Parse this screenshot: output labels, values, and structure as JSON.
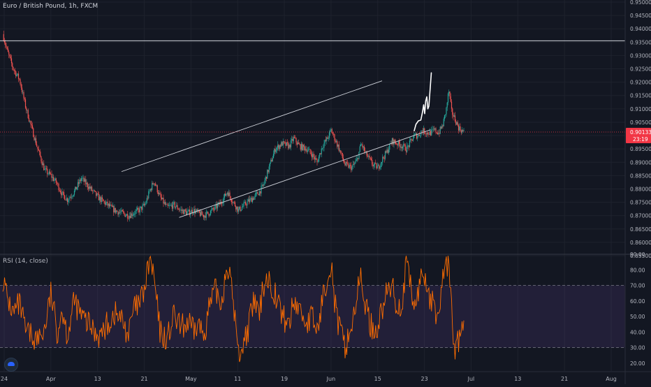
{
  "header": {
    "title": "Euro / British Pound, 1h, FXCM"
  },
  "colors": {
    "background": "#131722",
    "up": "#26a69a",
    "down": "#ef5350",
    "price_line": "#f23645",
    "rsi": "#ff6d00",
    "rsi_band": "#7e57c2",
    "drawing": "#ffffff"
  },
  "price_scale": {
    "ticks": [
      "0.95000",
      "0.94500",
      "0.94000",
      "0.93500",
      "0.93000",
      "0.92500",
      "0.92000",
      "0.91500",
      "0.91000",
      "0.90500",
      "0.90000",
      "0.89500",
      "0.89000",
      "0.88500",
      "0.88000",
      "0.87500",
      "0.87000",
      "0.86500",
      "0.86000",
      "0.85500"
    ],
    "last_price": "0.90133",
    "countdown": "23:19"
  },
  "rsi": {
    "label": "RSI (14, close)",
    "ticks": [
      "90.00",
      "80.00",
      "70.00",
      "60.00",
      "50.00",
      "40.00",
      "30.00",
      "20.00"
    ]
  },
  "time_axis": {
    "labels": [
      "24",
      "Apr",
      "13",
      "21",
      "May",
      "11",
      "19",
      "Jun",
      "15",
      "23",
      "Jul",
      "13",
      "21",
      "Aug"
    ]
  },
  "chart_data": {
    "type": "candlestick",
    "symbol": "Euro / British Pound",
    "timeframe": "1h",
    "source": "FXCM",
    "ylim": [
      0.855,
      0.95
    ],
    "last_price": 0.90133,
    "price_path": [
      [
        0,
        0.938
      ],
      [
        1.2,
        0.932
      ],
      [
        3,
        0.925
      ],
      [
        4.8,
        0.921
      ],
      [
        6.5,
        0.911
      ],
      [
        8,
        0.904
      ],
      [
        10,
        0.895
      ],
      [
        12,
        0.887
      ],
      [
        13.8,
        0.885
      ],
      [
        15.5,
        0.882
      ],
      [
        17,
        0.878
      ],
      [
        18.5,
        0.876
      ],
      [
        20.5,
        0.879
      ],
      [
        22.5,
        0.884
      ],
      [
        24.5,
        0.881
      ],
      [
        26.5,
        0.878
      ],
      [
        28,
        0.876
      ],
      [
        30,
        0.874
      ],
      [
        32,
        0.872
      ],
      [
        34,
        0.871
      ],
      [
        36,
        0.87
      ],
      [
        37.5,
        0.871
      ],
      [
        39,
        0.872
      ],
      [
        40.7,
        0.874
      ],
      [
        42,
        0.879
      ],
      [
        43.3,
        0.883
      ],
      [
        45,
        0.877
      ],
      [
        47,
        0.873
      ],
      [
        49,
        0.874
      ],
      [
        51,
        0.872
      ],
      [
        53,
        0.871
      ],
      [
        54.5,
        0.872
      ],
      [
        56,
        0.871
      ],
      [
        57.5,
        0.87
      ],
      [
        59,
        0.871
      ],
      [
        61,
        0.873
      ],
      [
        62.5,
        0.875
      ],
      [
        64.3,
        0.879
      ],
      [
        66,
        0.875
      ],
      [
        67.5,
        0.872
      ],
      [
        70,
        0.875
      ],
      [
        72,
        0.877
      ],
      [
        73.5,
        0.879
      ],
      [
        74.5,
        0.881
      ],
      [
        75.5,
        0.885
      ],
      [
        76.5,
        0.889
      ],
      [
        78,
        0.895
      ],
      [
        80,
        0.897
      ],
      [
        82,
        0.896
      ],
      [
        83.3,
        0.899
      ],
      [
        85,
        0.896
      ],
      [
        87,
        0.895
      ],
      [
        88.5,
        0.893
      ],
      [
        90,
        0.89
      ],
      [
        91.5,
        0.896
      ],
      [
        93,
        0.899
      ],
      [
        94,
        0.902
      ],
      [
        95,
        0.899
      ],
      [
        96,
        0.896
      ],
      [
        98,
        0.889
      ],
      [
        100,
        0.888
      ],
      [
        101.5,
        0.891
      ],
      [
        102.6,
        0.897
      ],
      [
        104,
        0.893
      ],
      [
        106,
        0.889
      ],
      [
        107.5,
        0.888
      ],
      [
        108.6,
        0.891
      ],
      [
        110,
        0.894
      ],
      [
        111.5,
        0.898
      ],
      [
        113,
        0.897
      ],
      [
        114.5,
        0.896
      ],
      [
        115.6,
        0.895
      ],
      [
        116.5,
        0.897
      ],
      [
        117.8,
        0.9
      ],
      [
        119,
        0.9
      ],
      [
        120,
        0.902
      ],
      [
        121.5,
        0.901
      ],
      [
        122.5,
        0.901
      ],
      [
        123.6,
        0.902
      ],
      [
        124.8,
        0.901
      ],
      [
        126,
        0.904
      ],
      [
        127,
        0.91
      ],
      [
        127.7,
        0.917
      ],
      [
        128.5,
        0.909
      ],
      [
        129.5,
        0.906
      ],
      [
        130.5,
        0.903
      ],
      [
        131.3,
        0.902
      ],
      [
        132.2,
        0.901
      ]
    ],
    "rsi_ylim": [
      15,
      90
    ],
    "rsi_levels": [
      30,
      70
    ],
    "rsi_path": [
      [
        0,
        75
      ],
      [
        1.2,
        62
      ],
      [
        3,
        52
      ],
      [
        4.8,
        58
      ],
      [
        6.5,
        40
      ],
      [
        8,
        38
      ],
      [
        10,
        35
      ],
      [
        12,
        42
      ],
      [
        13.8,
        65
      ],
      [
        15.5,
        40
      ],
      [
        17,
        55
      ],
      [
        18.5,
        38
      ],
      [
        20.5,
        60
      ],
      [
        22.5,
        50
      ],
      [
        24.5,
        45
      ],
      [
        26.5,
        40
      ],
      [
        28,
        38
      ],
      [
        30,
        45
      ],
      [
        32,
        52
      ],
      [
        34,
        48
      ],
      [
        36,
        38
      ],
      [
        37.5,
        55
      ],
      [
        39,
        57
      ],
      [
        40.7,
        68
      ],
      [
        42,
        87
      ],
      [
        43.3,
        75
      ],
      [
        45,
        40
      ],
      [
        47,
        35
      ],
      [
        49,
        50
      ],
      [
        51,
        42
      ],
      [
        53,
        46
      ],
      [
        54.5,
        40
      ],
      [
        56,
        45
      ],
      [
        57.5,
        38
      ],
      [
        59,
        55
      ],
      [
        61,
        67
      ],
      [
        62.5,
        58
      ],
      [
        64.3,
        85
      ],
      [
        66,
        60
      ],
      [
        67.5,
        25
      ],
      [
        70,
        40
      ],
      [
        72,
        60
      ],
      [
        73.5,
        50
      ],
      [
        74.5,
        70
      ],
      [
        75.5,
        75
      ],
      [
        76.5,
        72
      ],
      [
        78,
        65
      ],
      [
        80,
        50
      ],
      [
        82,
        45
      ],
      [
        83.3,
        60
      ],
      [
        85,
        55
      ],
      [
        87,
        45
      ],
      [
        88.5,
        50
      ],
      [
        90,
        40
      ],
      [
        91.5,
        60
      ],
      [
        93,
        78
      ],
      [
        94,
        86
      ],
      [
        95,
        60
      ],
      [
        96,
        45
      ],
      [
        98,
        30
      ],
      [
        100,
        45
      ],
      [
        101.5,
        65
      ],
      [
        102.6,
        75
      ],
      [
        104,
        55
      ],
      [
        106,
        40
      ],
      [
        107.5,
        45
      ],
      [
        108.6,
        55
      ],
      [
        110,
        65
      ],
      [
        111.5,
        70
      ],
      [
        113,
        55
      ],
      [
        114.5,
        60
      ],
      [
        115.6,
        86
      ],
      [
        116.5,
        72
      ],
      [
        117.8,
        55
      ],
      [
        119,
        65
      ],
      [
        120,
        80
      ],
      [
        121.5,
        70
      ],
      [
        122.5,
        60
      ],
      [
        123.6,
        55
      ],
      [
        124.8,
        50
      ],
      [
        126,
        75
      ],
      [
        127,
        85
      ],
      [
        127.7,
        82
      ],
      [
        128.5,
        55
      ],
      [
        129.5,
        25
      ],
      [
        130.5,
        35
      ],
      [
        131.3,
        40
      ],
      [
        132.2,
        42
      ]
    ],
    "channel_upper": [
      [
        34,
        0.8865
      ],
      [
        108.6,
        0.9205
      ]
    ],
    "channel_lower": [
      [
        50.5,
        0.8693
      ],
      [
        122.5,
        0.9022
      ]
    ],
    "horizontal_line": 0.9355,
    "projection": [
      [
        117.8,
        0.9018
      ],
      [
        118.3,
        0.9042
      ],
      [
        119,
        0.9055
      ],
      [
        119.7,
        0.9058
      ],
      [
        120.2,
        0.909
      ],
      [
        120.5,
        0.9115
      ],
      [
        120.8,
        0.9082
      ],
      [
        121.1,
        0.913
      ],
      [
        121.4,
        0.9145
      ],
      [
        121.7,
        0.91
      ],
      [
        122,
        0.911
      ],
      [
        122.7,
        0.9235
      ]
    ]
  }
}
